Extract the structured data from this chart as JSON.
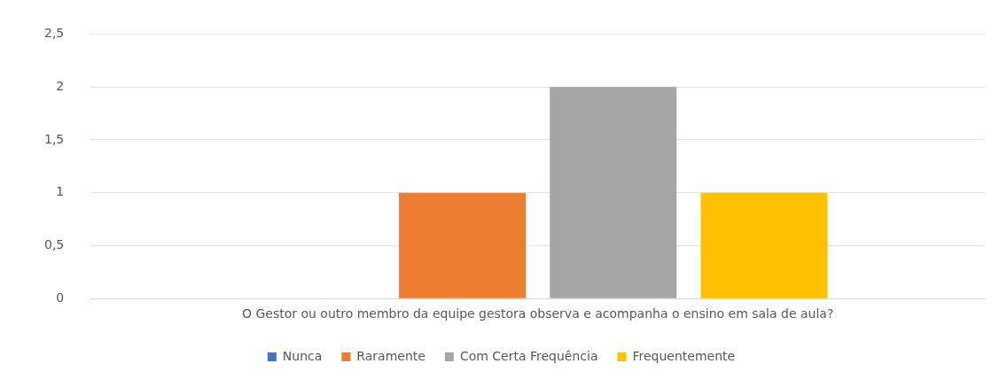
{
  "chart_data": {
    "type": "bar",
    "categories": [
      "O Gestor ou outro membro da equipe gestora observa e acompanha o ensino em sala de aula?"
    ],
    "series": [
      {
        "name": "Nunca",
        "color": "#4472c4",
        "values": [
          0
        ]
      },
      {
        "name": "Raramente",
        "color": "#ed7d31",
        "values": [
          1
        ]
      },
      {
        "name": "Com Certa Frequência",
        "color": "#a5a5a5",
        "values": [
          2
        ]
      },
      {
        "name": "Frequentemente",
        "color": "#ffc000",
        "values": [
          1
        ]
      }
    ],
    "ylim": [
      0,
      2.5
    ],
    "yticks": [
      0,
      {
        "value": 0.5,
        "label": "0,5"
      },
      1,
      {
        "value": 1.5,
        "label": "1,5"
      },
      2,
      {
        "value": 2.5,
        "label": "2,5"
      }
    ],
    "grid": "y",
    "legend": "bottom"
  }
}
